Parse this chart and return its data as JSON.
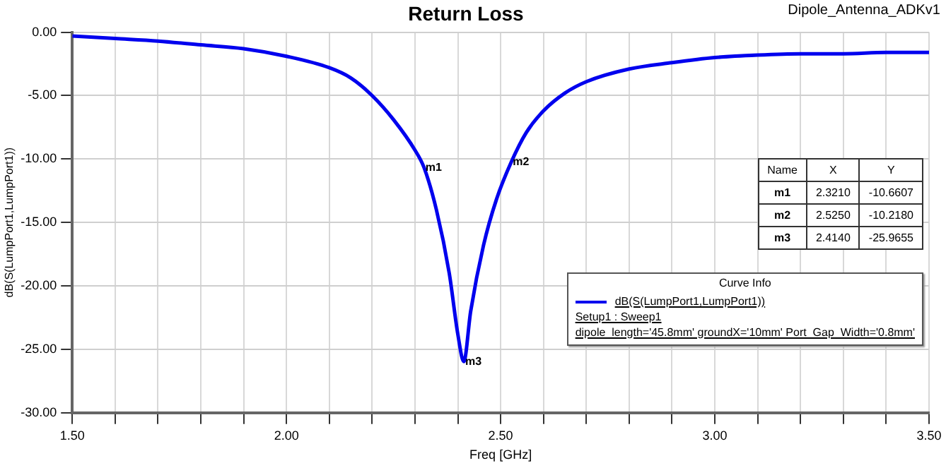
{
  "chart_data": {
    "type": "line",
    "title": "Return Loss",
    "xlabel": "Freq [GHz]",
    "ylabel": "dB(S(LumpPort1,LumpPort1))",
    "legend_title": "Curve Info",
    "legend": "bottom right",
    "grid": true,
    "marker": "none",
    "line_style": "solid",
    "xlim": [
      1.5,
      3.5
    ],
    "xticks": [
      {
        "value": 1.5,
        "label": "1.50"
      },
      {
        "value": 1.6,
        "label": null
      },
      {
        "value": 1.7,
        "label": null
      },
      {
        "value": 1.8,
        "label": null
      },
      {
        "value": 1.9,
        "label": null
      },
      {
        "value": 2,
        "label": "2.00"
      },
      {
        "value": 2.1,
        "label": null
      },
      {
        "value": 2.2,
        "label": null
      },
      {
        "value": 2.3,
        "label": null
      },
      {
        "value": 2.4,
        "label": null
      },
      {
        "value": 2.5,
        "label": "2.50"
      },
      {
        "value": 2.6,
        "label": null
      },
      {
        "value": 2.7,
        "label": null
      },
      {
        "value": 2.8,
        "label": null
      },
      {
        "value": 2.9,
        "label": null
      },
      {
        "value": 3,
        "label": "3.00"
      },
      {
        "value": 3.1,
        "label": null
      },
      {
        "value": 3.2,
        "label": null
      },
      {
        "value": 3.3,
        "label": null
      },
      {
        "value": 3.4,
        "label": null
      },
      {
        "value": 3.5,
        "label": "3.50"
      }
    ],
    "ylim": [
      -30,
      0
    ],
    "yticks": [
      {
        "value": -30,
        "label": "-30.00"
      },
      {
        "value": -25,
        "label": "-25.00"
      },
      {
        "value": -20,
        "label": "-20.00"
      },
      {
        "value": -15,
        "label": "-15.00"
      },
      {
        "value": -10,
        "label": "-10.00"
      },
      {
        "value": -5,
        "label": "-5.00"
      },
      {
        "value": 0,
        "label": "0.00"
      }
    ],
    "series": [
      {
        "name": "dB(S(LumpPort1,LumpPort1))",
        "color": "#0000ee",
        "x": [
          1.5,
          1.6,
          1.7,
          1.8,
          1.9,
          2.0,
          2.1,
          2.15,
          2.2,
          2.25,
          2.3,
          2.321,
          2.35,
          2.38,
          2.4,
          2.414,
          2.43,
          2.46,
          2.49,
          2.525,
          2.56,
          2.6,
          2.65,
          2.7,
          2.8,
          2.9,
          3.0,
          3.1,
          3.2,
          3.3,
          3.4,
          3.5
        ],
        "values": [
          -0.3,
          -0.5,
          -0.7,
          -1.0,
          -1.3,
          -1.9,
          -2.8,
          -3.6,
          -5.0,
          -6.9,
          -9.3,
          -10.6607,
          -14,
          -19,
          -23.8,
          -25.9655,
          -22,
          -16.8,
          -13.2,
          -10.218,
          -7.9,
          -6.2,
          -4.8,
          -3.9,
          -2.9,
          -2.4,
          -2.0,
          -1.8,
          -1.7,
          -1.7,
          -1.6,
          -1.6
        ]
      }
    ],
    "annotations": [
      "Dipole_Antenna_ADKv1",
      "Name",
      "X",
      "Y",
      "m1",
      "2.3210",
      "-10.6607",
      "m2",
      "2.5250",
      "-10.2180",
      "m3",
      "2.4140",
      "-25.9655",
      {
        "text": "m1",
        "x": 2.321,
        "y": -10.6607
      },
      {
        "text": "m2",
        "x": 2.525,
        "y": -10.218
      },
      {
        "text": "m3",
        "x": 2.414,
        "y": -25.9655
      },
      "Setup1 : Sweep1",
      "dipole_length='45.8mm' groundX='10mm' Port_Gap_Width='0.8mm'"
    ]
  }
}
